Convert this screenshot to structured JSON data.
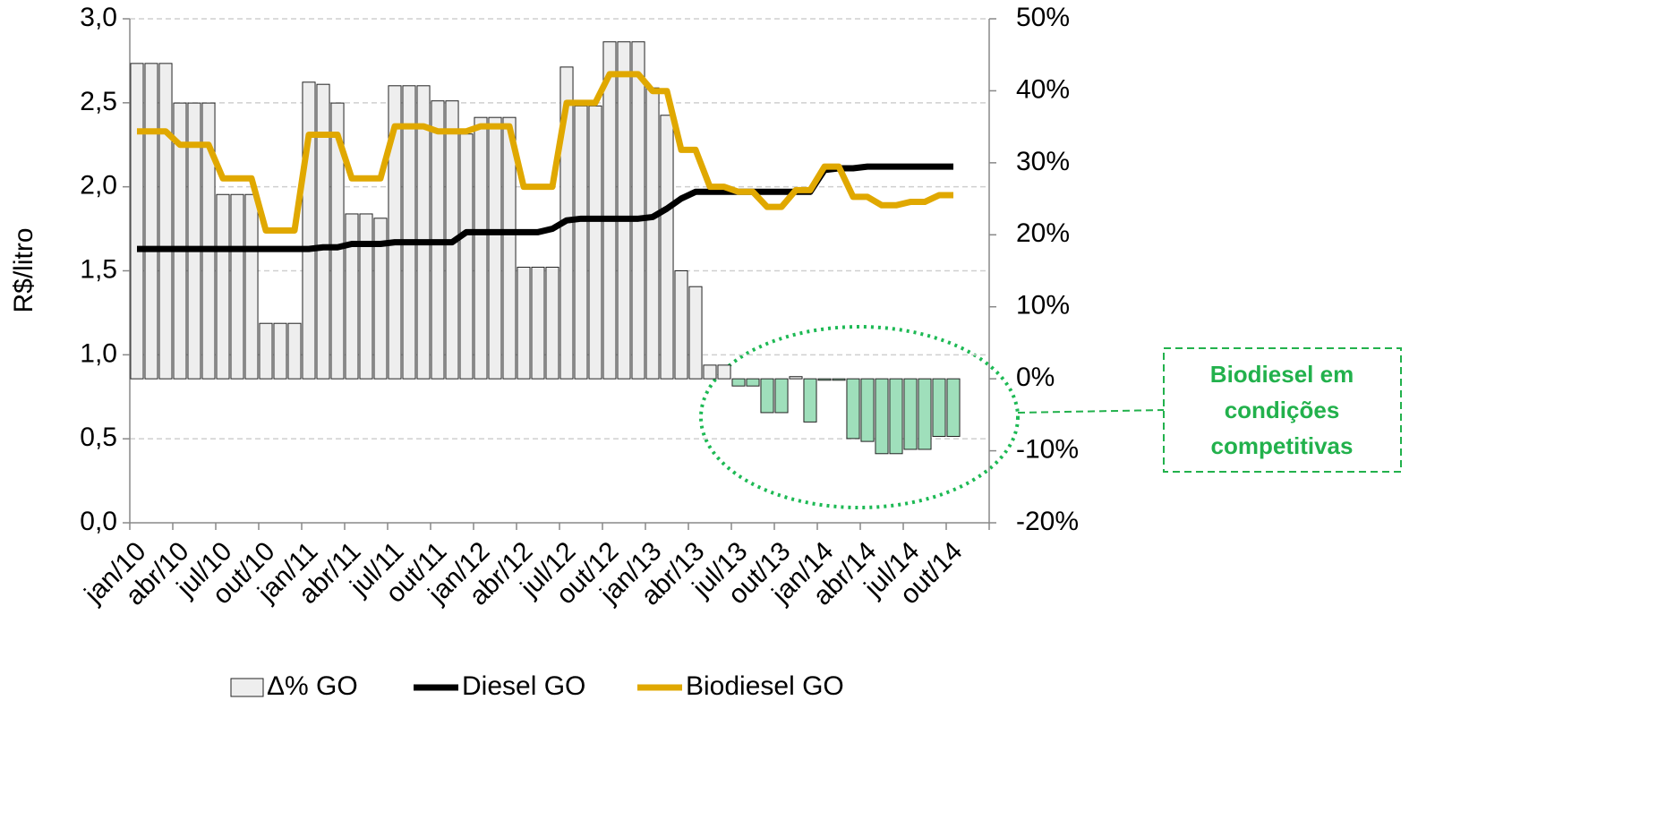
{
  "chart_data": {
    "type": "bar_line_combo",
    "y_label": "R$/litro",
    "categories": [
      "jan/10",
      null,
      null,
      "abr/10",
      null,
      null,
      "jul/10",
      null,
      null,
      "out/10",
      null,
      null,
      "jan/11",
      null,
      null,
      "abr/11",
      null,
      null,
      "jul/11",
      null,
      null,
      "out/11",
      null,
      null,
      "jan/12",
      null,
      null,
      "abr/12",
      null,
      null,
      "jul/12",
      null,
      null,
      "out/12",
      null,
      null,
      "jan/13",
      null,
      null,
      "abr/13",
      null,
      null,
      "jul/13",
      null,
      null,
      "out/13",
      null,
      null,
      "jan/14",
      null,
      null,
      "abr/14",
      null,
      null,
      "jul/14",
      null,
      null,
      "out/14",
      null,
      null
    ],
    "ylim": [
      0,
      3
    ],
    "yticks": [
      {
        "value": 0,
        "label": "0,0"
      },
      {
        "value": 0.5,
        "label": "0,5"
      },
      {
        "value": 1,
        "label": "1,0"
      },
      {
        "value": 1.5,
        "label": "1,5"
      },
      {
        "value": 2,
        "label": "2,0"
      },
      {
        "value": 2.5,
        "label": "2,5"
      },
      {
        "value": 3,
        "label": "3,0"
      }
    ],
    "y2lim": [
      -20,
      50
    ],
    "y2ticks": [
      {
        "value": -20,
        "label": "-20%"
      },
      {
        "value": -10,
        "label": "-10%"
      },
      {
        "value": 0,
        "label": "0%"
      },
      {
        "value": 10,
        "label": "10%"
      },
      {
        "value": 20,
        "label": "20%"
      },
      {
        "value": 30,
        "label": "30%"
      },
      {
        "value": 40,
        "label": "40%"
      },
      {
        "value": 50,
        "label": "50%"
      }
    ],
    "grid": true,
    "series": [
      {
        "name": "Δ% GO",
        "kind": "bar",
        "axis": "y2",
        "color": "#eeeeee",
        "negative_color": "#9fdfbb",
        "values": [
          43.8,
          43.8,
          43.8,
          38.3,
          38.3,
          38.3,
          25.6,
          25.6,
          25.6,
          7.7,
          7.7,
          7.7,
          41.2,
          40.9,
          38.3,
          22.9,
          22.9,
          22.3,
          40.7,
          40.7,
          40.7,
          38.6,
          38.6,
          34.0,
          36.3,
          36.3,
          36.3,
          15.5,
          15.5,
          15.5,
          43.3,
          37.9,
          37.9,
          46.8,
          46.8,
          46.8,
          40.4,
          36.6,
          15.0,
          12.8,
          1.9,
          1.9,
          -1.0,
          -1.0,
          -4.7,
          -4.7,
          0.3,
          -6.0,
          -0.2,
          -0.2,
          -8.3,
          -8.7,
          -10.4,
          -10.4,
          -9.8,
          -9.8,
          -8.0,
          -8.0,
          null,
          null
        ]
      },
      {
        "name": "Diesel GO",
        "kind": "line",
        "color": "#000000",
        "values": [
          1.63,
          1.63,
          1.63,
          1.63,
          1.63,
          1.63,
          1.63,
          1.63,
          1.63,
          1.63,
          1.63,
          1.63,
          1.63,
          1.64,
          1.64,
          1.66,
          1.66,
          1.66,
          1.67,
          1.67,
          1.67,
          1.67,
          1.67,
          1.73,
          1.73,
          1.73,
          1.73,
          1.73,
          1.73,
          1.75,
          1.8,
          1.81,
          1.81,
          1.81,
          1.81,
          1.81,
          1.82,
          1.87,
          1.93,
          1.97,
          1.97,
          1.97,
          1.97,
          1.97,
          1.97,
          1.97,
          1.97,
          1.97,
          2.1,
          2.11,
          2.11,
          2.12,
          2.12,
          2.12,
          2.12,
          2.12,
          2.12,
          2.12,
          null,
          null
        ]
      },
      {
        "name": "Biodiesel GO",
        "kind": "line",
        "color": "#e0a800",
        "values": [
          2.33,
          2.33,
          2.33,
          2.25,
          2.25,
          2.25,
          2.05,
          2.05,
          2.05,
          1.74,
          1.74,
          1.74,
          2.31,
          2.31,
          2.31,
          2.05,
          2.05,
          2.05,
          2.36,
          2.36,
          2.36,
          2.33,
          2.33,
          2.33,
          2.36,
          2.36,
          2.36,
          2.0,
          2.0,
          2.0,
          2.5,
          2.5,
          2.5,
          2.67,
          2.67,
          2.67,
          2.57,
          2.57,
          2.22,
          2.22,
          2.0,
          2.0,
          1.97,
          1.97,
          1.88,
          1.88,
          1.98,
          1.98,
          2.12,
          2.12,
          1.94,
          1.94,
          1.89,
          1.89,
          1.91,
          1.91,
          1.95,
          1.95,
          null,
          null
        ]
      }
    ],
    "annotation": [
      "Biodiesel em",
      "condições",
      "competitivas"
    ]
  }
}
